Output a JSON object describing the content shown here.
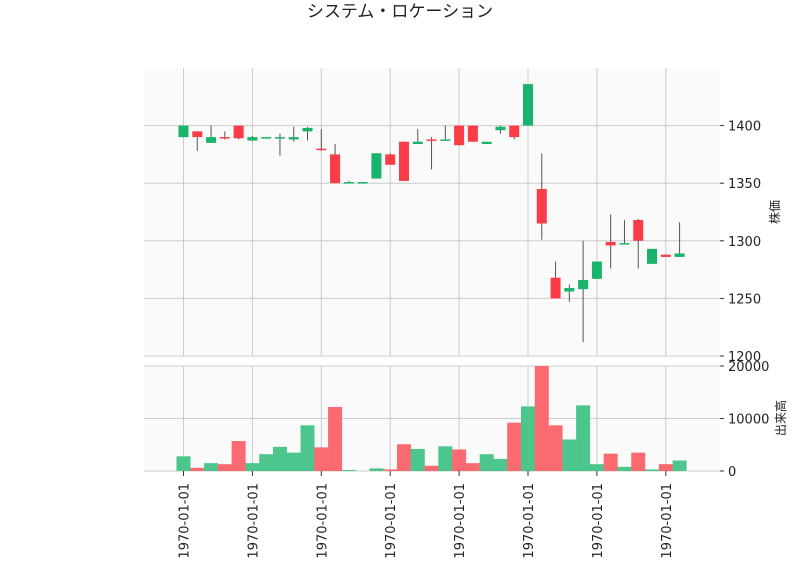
{
  "chart_data": {
    "type": "candlestick",
    "title": "システム・ロケーション",
    "price_axis_label": "株価",
    "volume_axis_label": "出来高",
    "price_ylim": [
      1200,
      1450
    ],
    "price_ticks": [
      1200,
      1250,
      1300,
      1350,
      1400
    ],
    "volume_ylim": [
      0,
      20000
    ],
    "volume_ticks": [
      0,
      10000,
      20000
    ],
    "x_tick_labels": [
      "1970-01-01",
      "1970-01-01",
      "1970-01-01",
      "1970-01-01",
      "1970-01-01",
      "1970-01-01",
      "1970-01-01",
      "1970-01-01"
    ],
    "x_tick_index": [
      0,
      5,
      10,
      15,
      20,
      25,
      30,
      35
    ],
    "grid": true,
    "colors": {
      "up": "#18b46b",
      "down": "#fa3c46",
      "up_volume": "#4cc68c",
      "down_volume": "#fb6a70",
      "wick": "#555555",
      "panel_bg": "#fafafa",
      "grid": "#cccccc"
    },
    "candles": [
      {
        "open": 1390,
        "high": 1400,
        "low": 1390,
        "close": 1400,
        "volume": 2800
      },
      {
        "open": 1395,
        "high": 1395,
        "low": 1378,
        "close": 1390,
        "volume": 600
      },
      {
        "open": 1385,
        "high": 1400,
        "low": 1385,
        "close": 1390,
        "volume": 1500
      },
      {
        "open": 1390,
        "high": 1395,
        "low": 1388,
        "close": 1389,
        "volume": 1300
      },
      {
        "open": 1400,
        "high": 1400,
        "low": 1388,
        "close": 1389,
        "volume": 5700
      },
      {
        "open": 1387,
        "high": 1391,
        "low": 1387,
        "close": 1390,
        "volume": 1500
      },
      {
        "open": 1390,
        "high": 1390,
        "low": 1390,
        "close": 1390,
        "volume": 3200
      },
      {
        "open": 1390,
        "high": 1393,
        "low": 1374,
        "close": 1390,
        "volume": 4600
      },
      {
        "open": 1388,
        "high": 1399,
        "low": 1386,
        "close": 1390,
        "volume": 3500
      },
      {
        "open": 1395,
        "high": 1399,
        "low": 1387,
        "close": 1398,
        "volume": 8700
      },
      {
        "open": 1380,
        "high": 1397,
        "low": 1378,
        "close": 1379,
        "volume": 4500
      },
      {
        "open": 1375,
        "high": 1384,
        "low": 1350,
        "close": 1350,
        "volume": 12200
      },
      {
        "open": 1351,
        "high": 1352,
        "low": 1351,
        "close": 1351,
        "volume": 200
      },
      {
        "open": 1351,
        "high": 1351,
        "low": 1351,
        "close": 1351,
        "volume": 0
      },
      {
        "open": 1354,
        "high": 1376,
        "low": 1354,
        "close": 1376,
        "volume": 500
      },
      {
        "open": 1375,
        "high": 1376,
        "low": 1366,
        "close": 1366,
        "volume": 300
      },
      {
        "open": 1386,
        "high": 1386,
        "low": 1352,
        "close": 1352,
        "volume": 5100
      },
      {
        "open": 1384,
        "high": 1397,
        "low": 1384,
        "close": 1386,
        "volume": 4200
      },
      {
        "open": 1388,
        "high": 1390,
        "low": 1362,
        "close": 1387,
        "volume": 1000
      },
      {
        "open": 1388,
        "high": 1400,
        "low": 1388,
        "close": 1388,
        "volume": 4700
      },
      {
        "open": 1400,
        "high": 1400,
        "low": 1383,
        "close": 1383,
        "volume": 4100
      },
      {
        "open": 1400,
        "high": 1400,
        "low": 1386,
        "close": 1386,
        "volume": 1500
      },
      {
        "open": 1384,
        "high": 1386,
        "low": 1384,
        "close": 1386,
        "volume": 3200
      },
      {
        "open": 1396,
        "high": 1400,
        "low": 1393,
        "close": 1399,
        "volume": 2300
      },
      {
        "open": 1400,
        "high": 1400,
        "low": 1388,
        "close": 1390,
        "volume": 9200
      },
      {
        "open": 1400,
        "high": 1436,
        "low": 1400,
        "close": 1436,
        "volume": 12300
      },
      {
        "open": 1345,
        "high": 1376,
        "low": 1301,
        "close": 1315,
        "volume": 20000
      },
      {
        "open": 1268,
        "high": 1282,
        "low": 1250,
        "close": 1250,
        "volume": 8700
      },
      {
        "open": 1256,
        "high": 1262,
        "low": 1247,
        "close": 1259,
        "volume": 6000
      },
      {
        "open": 1258,
        "high": 1300,
        "low": 1212,
        "close": 1266,
        "volume": 12500
      },
      {
        "open": 1267,
        "high": 1282,
        "low": 1267,
        "close": 1282,
        "volume": 1300
      },
      {
        "open": 1299,
        "high": 1323,
        "low": 1276,
        "close": 1296,
        "volume": 3300
      },
      {
        "open": 1298,
        "high": 1318,
        "low": 1298,
        "close": 1298,
        "volume": 800
      },
      {
        "open": 1318,
        "high": 1319,
        "low": 1276,
        "close": 1300,
        "volume": 3500
      },
      {
        "open": 1280,
        "high": 1293,
        "low": 1280,
        "close": 1293,
        "volume": 300
      },
      {
        "open": 1288,
        "high": 1288,
        "low": 1286,
        "close": 1286,
        "volume": 1300
      },
      {
        "open": 1286,
        "high": 1316,
        "low": 1286,
        "close": 1289,
        "volume": 2000
      }
    ]
  }
}
